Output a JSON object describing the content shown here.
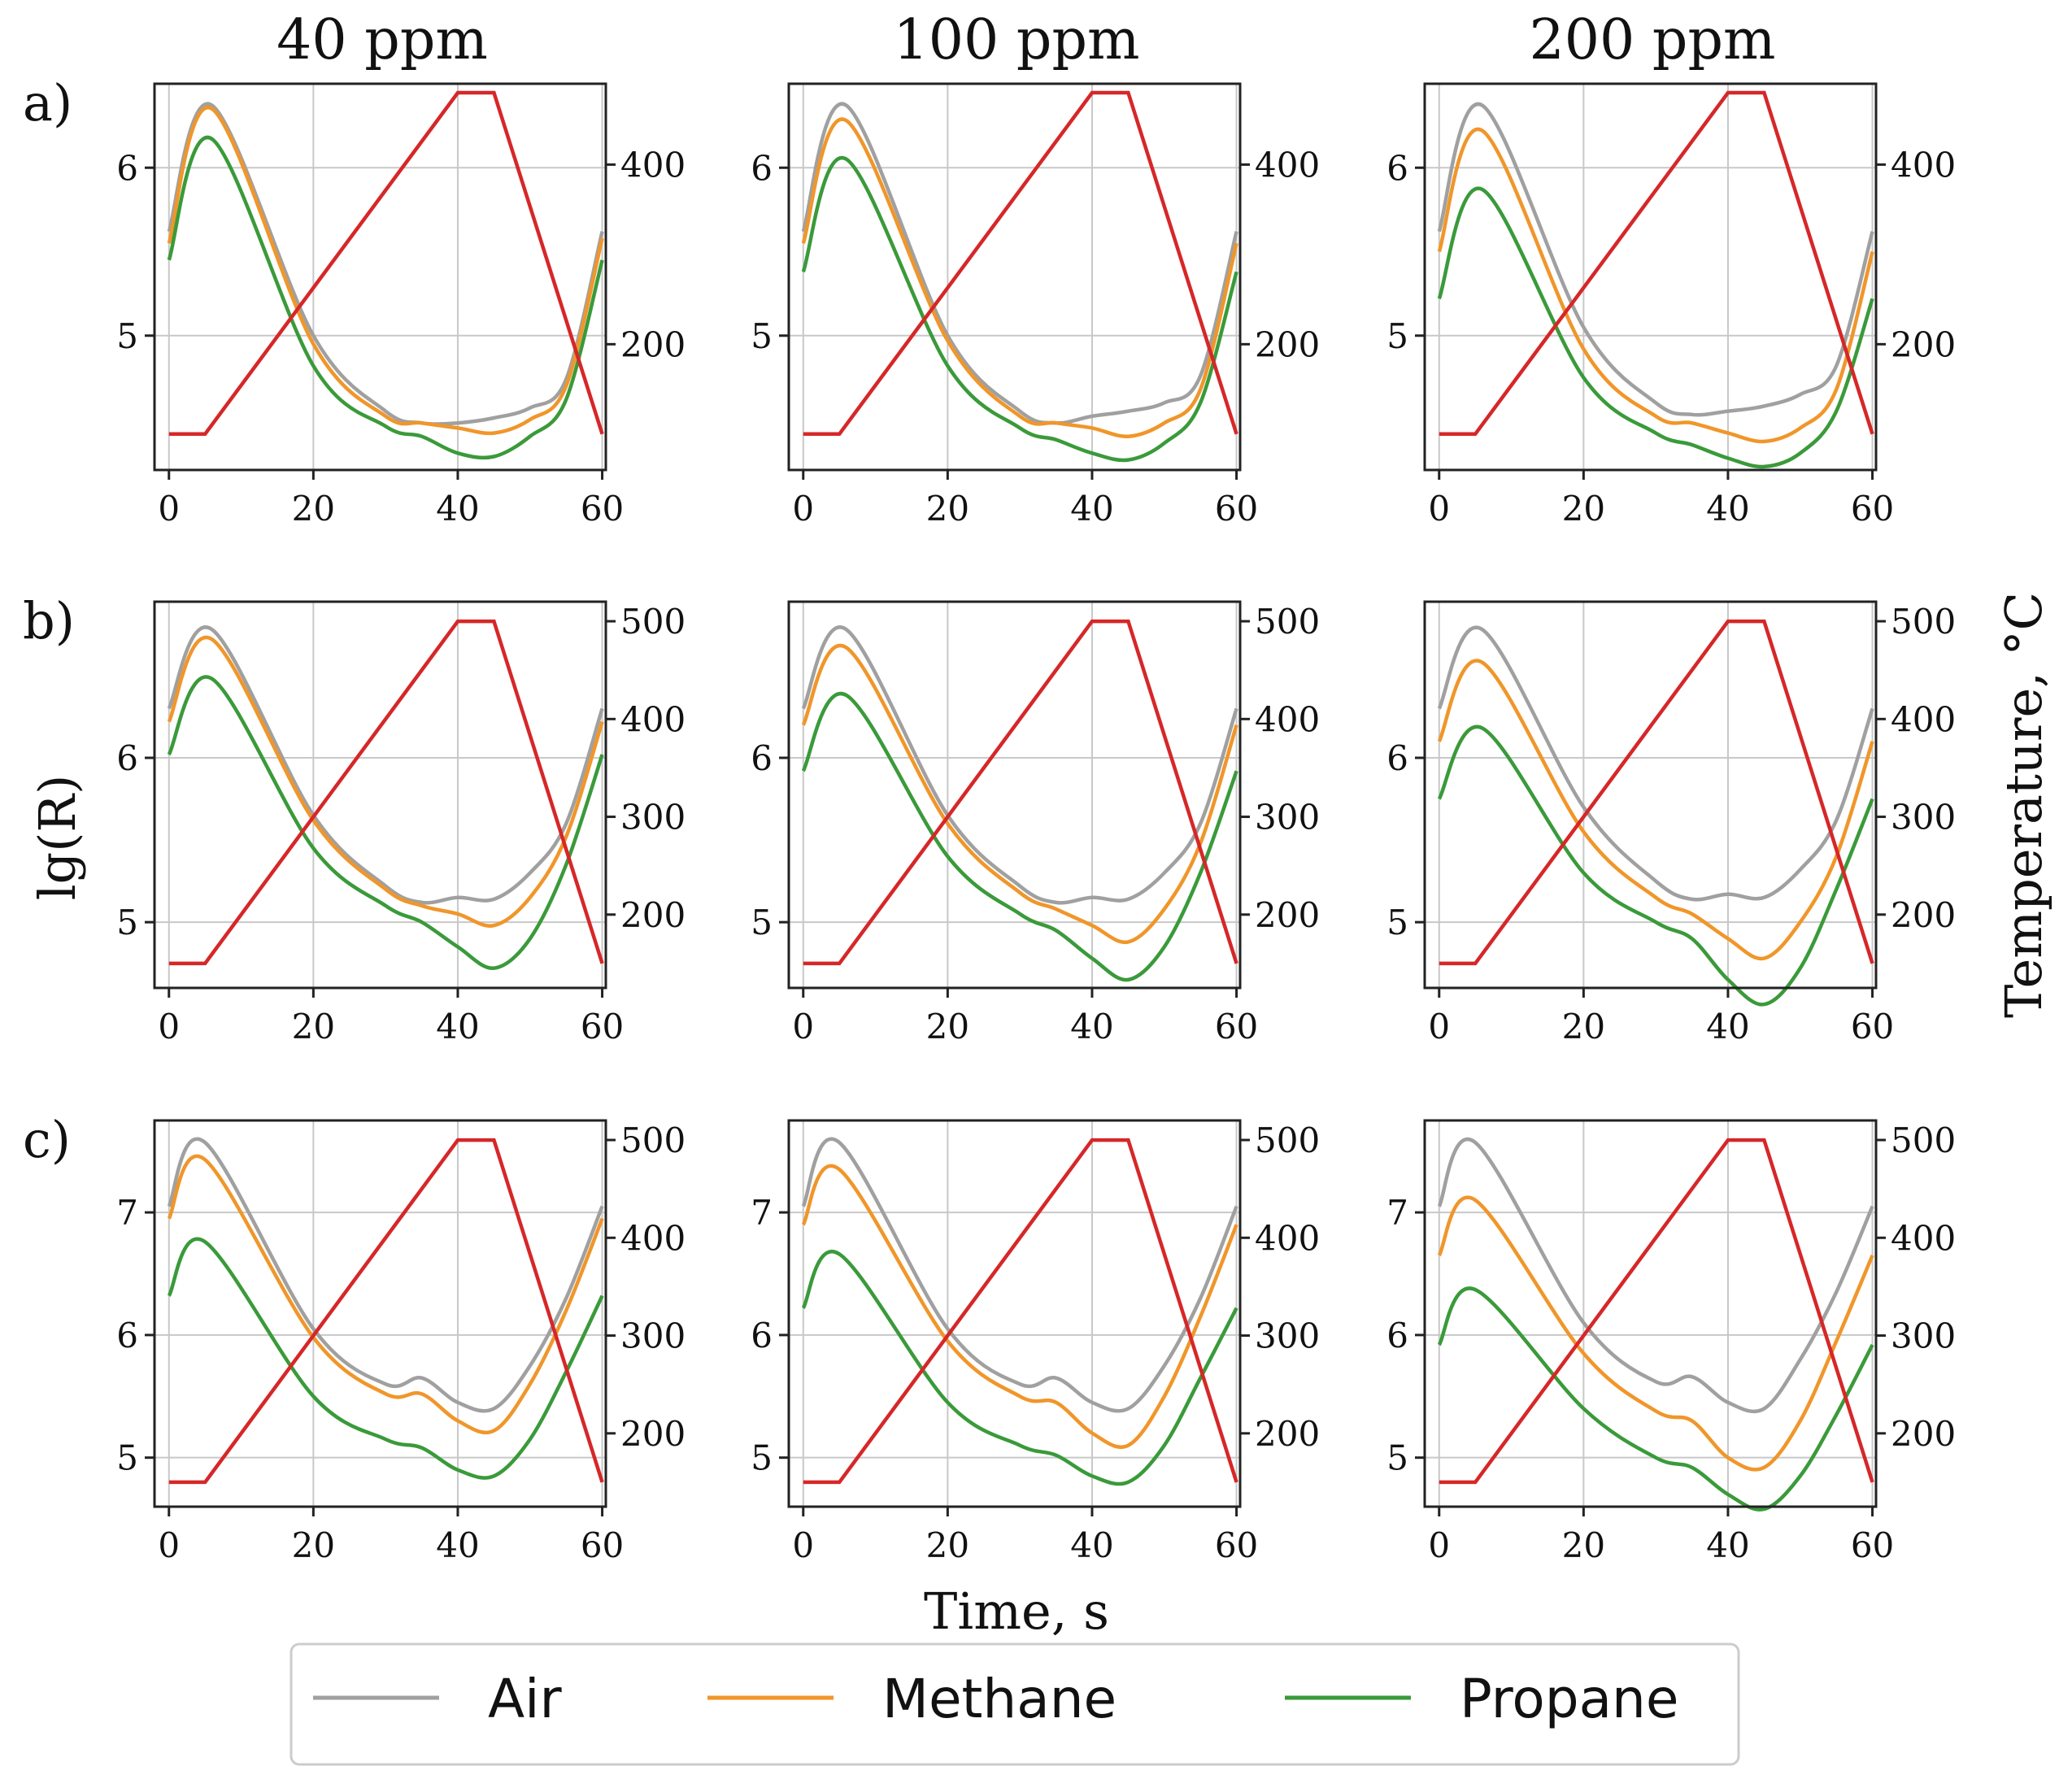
{
  "figure": {
    "column_titles": [
      "40 ppm",
      "100 ppm",
      "200 ppm"
    ],
    "row_labels": [
      "a)",
      "b)",
      "c)"
    ],
    "xlabel": "Time, s",
    "ylabel_left": "lg(R)",
    "ylabel_right": "Temperature, °C",
    "colors": {
      "Air": "#a0a0a0",
      "Methane": "#f0962a",
      "Propane": "#3a9a3a",
      "Temperature": "#d62728",
      "grid": "#c8c8c8"
    }
  },
  "legend": {
    "items": [
      "Air",
      "Methane",
      "Propane"
    ],
    "placement": "bottom-center"
  },
  "chart_data": {
    "type": "line",
    "layout": "3x3 grid of dual-axis line plots (rows a-c, columns by concentration)",
    "x_ticks": [
      0,
      20,
      40,
      60
    ],
    "xlim": [
      -2,
      60.5
    ],
    "temperature_profile": {
      "name": "Temperature",
      "x": [
        0,
        5,
        40,
        45,
        60
      ]
    },
    "rows": [
      {
        "label": "a)",
        "y_ticks": [
          5,
          6
        ],
        "ylim": [
          4.2,
          6.5
        ],
        "temp_ticks": [
          200,
          400
        ],
        "temp_lim": [
          60,
          490
        ],
        "temp_values": [
          100,
          100,
          480,
          480,
          100
        ],
        "panels": [
          {
            "title": "40 ppm",
            "x": [
              0,
              6,
              20,
              30,
              35,
              40,
              45,
              50,
              55,
              60
            ],
            "series": [
              {
                "name": "Air",
                "values": [
                  5.62,
                  6.37,
                  5.0,
                  4.55,
                  4.48,
                  4.48,
                  4.51,
                  4.57,
                  4.74,
                  5.62
                ]
              },
              {
                "name": "Methane",
                "values": [
                  5.55,
                  6.35,
                  4.95,
                  4.52,
                  4.48,
                  4.45,
                  4.42,
                  4.5,
                  4.7,
                  5.58
                ]
              },
              {
                "name": "Propane",
                "values": [
                  5.45,
                  6.17,
                  4.82,
                  4.46,
                  4.4,
                  4.3,
                  4.28,
                  4.4,
                  4.62,
                  5.45
                ]
              }
            ]
          },
          {
            "title": "100 ppm",
            "x": [
              0,
              6,
              20,
              30,
              35,
              40,
              45,
              50,
              55,
              60
            ],
            "series": [
              {
                "name": "Air",
                "values": [
                  5.62,
                  6.37,
                  5.0,
                  4.55,
                  4.48,
                  4.52,
                  4.55,
                  4.6,
                  4.76,
                  5.62
                ]
              },
              {
                "name": "Methane",
                "values": [
                  5.55,
                  6.28,
                  4.97,
                  4.52,
                  4.48,
                  4.45,
                  4.4,
                  4.48,
                  4.68,
                  5.55
                ]
              },
              {
                "name": "Propane",
                "values": [
                  5.38,
                  6.05,
                  4.82,
                  4.45,
                  4.38,
                  4.3,
                  4.26,
                  4.36,
                  4.6,
                  5.38
                ]
              }
            ]
          },
          {
            "title": "200 ppm",
            "x": [
              0,
              6,
              20,
              30,
              35,
              40,
              45,
              50,
              55,
              60
            ],
            "series": [
              {
                "name": "Air",
                "values": [
                  5.62,
                  6.37,
                  5.05,
                  4.6,
                  4.53,
                  4.55,
                  4.58,
                  4.65,
                  4.82,
                  5.62
                ]
              },
              {
                "name": "Methane",
                "values": [
                  5.5,
                  6.22,
                  4.92,
                  4.52,
                  4.48,
                  4.42,
                  4.37,
                  4.45,
                  4.68,
                  5.5
                ]
              },
              {
                "name": "Propane",
                "values": [
                  5.22,
                  5.87,
                  4.75,
                  4.42,
                  4.35,
                  4.27,
                  4.22,
                  4.3,
                  4.55,
                  5.22
                ]
              }
            ]
          }
        ]
      },
      {
        "label": "b)",
        "y_ticks": [
          5,
          6
        ],
        "ylim": [
          4.6,
          6.95
        ],
        "temp_ticks": [
          200,
          300,
          400,
          500
        ],
        "temp_lim": [
          125,
          520
        ],
        "temp_values": [
          150,
          150,
          500,
          500,
          150
        ],
        "panels": [
          {
            "title": "40 ppm",
            "x": [
              0,
              6,
              20,
              30,
              35,
              40,
              45,
              50,
              55,
              60
            ],
            "series": [
              {
                "name": "Air",
                "values": [
                  6.3,
                  6.78,
                  5.65,
                  5.22,
                  5.12,
                  5.15,
                  5.14,
                  5.3,
                  5.6,
                  6.3
                ]
              },
              {
                "name": "Methane",
                "values": [
                  6.22,
                  6.72,
                  5.62,
                  5.2,
                  5.1,
                  5.05,
                  4.98,
                  5.15,
                  5.52,
                  6.22
                ]
              },
              {
                "name": "Propane",
                "values": [
                  6.02,
                  6.48,
                  5.45,
                  5.1,
                  5.0,
                  4.85,
                  4.72,
                  4.9,
                  5.35,
                  6.02
                ]
              }
            ]
          },
          {
            "title": "100 ppm",
            "x": [
              0,
              6,
              20,
              30,
              35,
              40,
              45,
              50,
              55,
              60
            ],
            "series": [
              {
                "name": "Air",
                "values": [
                  6.3,
                  6.78,
                  5.65,
                  5.22,
                  5.12,
                  5.15,
                  5.14,
                  5.3,
                  5.6,
                  6.3
                ]
              },
              {
                "name": "Methane",
                "values": [
                  6.2,
                  6.67,
                  5.6,
                  5.18,
                  5.08,
                  4.98,
                  4.88,
                  5.08,
                  5.48,
                  6.2
                ]
              },
              {
                "name": "Propane",
                "values": [
                  5.92,
                  6.38,
                  5.4,
                  5.05,
                  4.95,
                  4.78,
                  4.65,
                  4.85,
                  5.3,
                  5.92
                ]
              }
            ]
          },
          {
            "title": "200 ppm",
            "x": [
              0,
              6,
              20,
              30,
              35,
              40,
              45,
              50,
              55,
              60
            ],
            "series": [
              {
                "name": "Air",
                "values": [
                  6.3,
                  6.78,
                  5.7,
                  5.25,
                  5.14,
                  5.17,
                  5.15,
                  5.32,
                  5.62,
                  6.3
                ]
              },
              {
                "name": "Methane",
                "values": [
                  6.1,
                  6.58,
                  5.55,
                  5.15,
                  5.05,
                  4.9,
                  4.78,
                  5.0,
                  5.4,
                  6.1
                ]
              },
              {
                "name": "Propane",
                "values": [
                  5.75,
                  6.18,
                  5.3,
                  5.0,
                  4.9,
                  4.65,
                  4.5,
                  4.72,
                  5.2,
                  5.75
                ]
              }
            ]
          }
        ]
      },
      {
        "label": "c)",
        "y_ticks": [
          5,
          6,
          7
        ],
        "ylim": [
          4.6,
          7.75
        ],
        "temp_ticks": [
          200,
          300,
          400,
          500
        ],
        "temp_lim": [
          125,
          520
        ],
        "temp_values": [
          150,
          150,
          500,
          500,
          150
        ],
        "panels": [
          {
            "title": "40 ppm",
            "x": [
              0,
              5,
              20,
              30,
              35,
              40,
              45,
              50,
              55,
              60
            ],
            "series": [
              {
                "name": "Air",
                "values": [
                  7.05,
                  7.57,
                  6.05,
                  5.6,
                  5.65,
                  5.45,
                  5.4,
                  5.75,
                  6.3,
                  7.05
                ]
              },
              {
                "name": "Methane",
                "values": [
                  6.95,
                  7.43,
                  5.98,
                  5.52,
                  5.52,
                  5.3,
                  5.22,
                  5.6,
                  6.2,
                  6.95
                ]
              },
              {
                "name": "Propane",
                "values": [
                  6.32,
                  6.76,
                  5.5,
                  5.15,
                  5.08,
                  4.9,
                  4.85,
                  5.15,
                  5.7,
                  6.32
                ]
              }
            ]
          },
          {
            "title": "100 ppm",
            "x": [
              0,
              5,
              20,
              30,
              35,
              40,
              45,
              50,
              55,
              60
            ],
            "series": [
              {
                "name": "Air",
                "values": [
                  7.05,
                  7.57,
                  6.05,
                  5.6,
                  5.65,
                  5.45,
                  5.4,
                  5.75,
                  6.3,
                  7.05
                ]
              },
              {
                "name": "Methane",
                "values": [
                  6.9,
                  7.35,
                  5.95,
                  5.5,
                  5.45,
                  5.2,
                  5.1,
                  5.5,
                  6.15,
                  6.9
                ]
              },
              {
                "name": "Propane",
                "values": [
                  6.22,
                  6.66,
                  5.45,
                  5.1,
                  5.02,
                  4.85,
                  4.8,
                  5.1,
                  5.65,
                  6.22
                ]
              }
            ]
          },
          {
            "title": "200 ppm",
            "x": [
              0,
              5,
              20,
              30,
              35,
              40,
              45,
              50,
              55,
              60
            ],
            "series": [
              {
                "name": "Air",
                "values": [
                  7.05,
                  7.57,
                  6.1,
                  5.62,
                  5.66,
                  5.45,
                  5.4,
                  5.8,
                  6.35,
                  7.05
                ]
              },
              {
                "name": "Methane",
                "values": [
                  6.65,
                  7.1,
                  5.85,
                  5.38,
                  5.3,
                  5.0,
                  4.92,
                  5.3,
                  5.95,
                  6.65
                ]
              },
              {
                "name": "Propane",
                "values": [
                  5.92,
                  6.37,
                  5.4,
                  5.0,
                  4.92,
                  4.7,
                  4.58,
                  4.85,
                  5.35,
                  5.92
                ]
              }
            ]
          }
        ]
      }
    ]
  }
}
